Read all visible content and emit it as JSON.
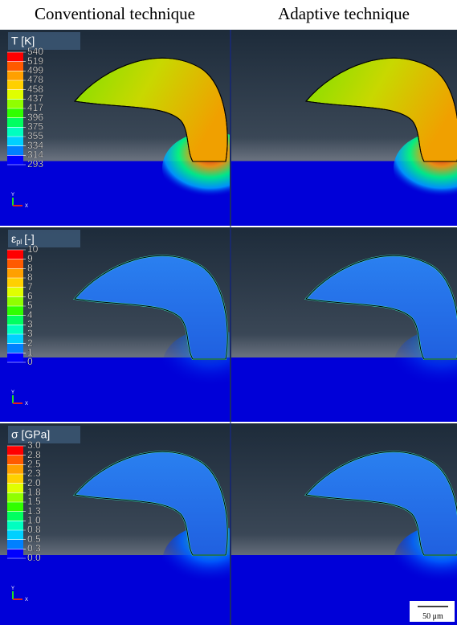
{
  "headers": [
    "Conventional technique",
    "Adaptive technique"
  ],
  "triad": {
    "y": "Y",
    "x": "X"
  },
  "scale_bar": "50 μm",
  "rows": [
    {
      "legend": {
        "title": "T [K]",
        "labels": [
          "540",
          "519",
          "499",
          "478",
          "458",
          "437",
          "417",
          "396",
          "375",
          "355",
          "334",
          "314",
          "293"
        ]
      }
    },
    {
      "legend": {
        "title": {
          "symbol": "ε",
          "subscript": "pl",
          "unit": "[-]"
        },
        "labels": [
          "10",
          "9",
          "8",
          "8",
          "7",
          "6",
          "5",
          "4",
          "3",
          "3",
          "2",
          "1",
          "0"
        ]
      }
    },
    {
      "legend": {
        "title": "σ [GPa]",
        "labels": [
          "3.0",
          "2.8",
          "2.5",
          "2.3",
          "2.0",
          "1.8",
          "1.5",
          "1.3",
          "1.0",
          "0.8",
          "0.5",
          "0.3",
          "0.0"
        ]
      }
    }
  ]
}
